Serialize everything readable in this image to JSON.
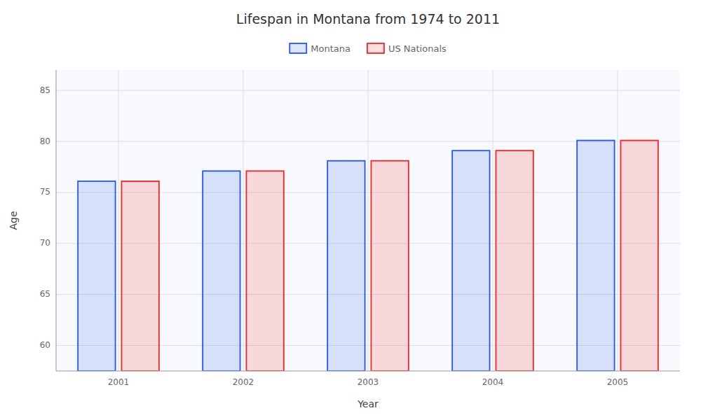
{
  "chart_data": {
    "type": "bar",
    "title": "Lifespan in Montana from 1974 to 2011",
    "x_label": "Year",
    "y_label": "Age",
    "categories": [
      "2001",
      "2002",
      "2003",
      "2004",
      "2005"
    ],
    "series": [
      {
        "name": "Montana",
        "color": "#2255ff",
        "values": [
          76.1,
          77.1,
          78.1,
          79.1,
          80.1
        ]
      },
      {
        "name": "US Nationals",
        "color": "#ff2222",
        "values": [
          76.1,
          77.1,
          78.1,
          79.1,
          80.1
        ]
      }
    ],
    "ylim": [
      57.5,
      87
    ],
    "yticks": [
      60,
      65,
      70,
      75,
      80,
      85
    ],
    "grid": true,
    "legend": "top"
  }
}
